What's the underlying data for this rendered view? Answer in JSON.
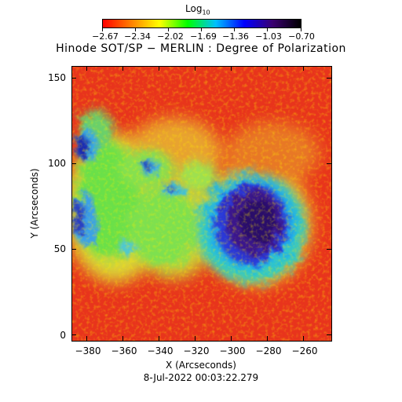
{
  "colorbar": {
    "title_main": "Log",
    "title_sub": "10",
    "tick_labels": [
      "−2.67",
      "−2.34",
      "−2.02",
      "−1.69",
      "−1.36",
      "−1.03",
      "−0.70"
    ],
    "colors": [
      "#ff0000",
      "#ff7f00",
      "#ffff00",
      "#00ff00",
      "#00bfff",
      "#0000ff",
      "#3a0070",
      "#000000"
    ]
  },
  "plot": {
    "title": "Hinode SOT/SP − MERLIN : Degree of Polarization",
    "xlabel": "X (Arcseconds)",
    "ylabel": "Y (Arcseconds)",
    "x_ticks": [
      "−380",
      "−360",
      "−340",
      "−320",
      "−300",
      "−280",
      "−260"
    ],
    "y_ticks": [
      "0",
      "50",
      "100",
      "150"
    ],
    "date": "8-Jul-2022 00:03:22.279"
  }
}
